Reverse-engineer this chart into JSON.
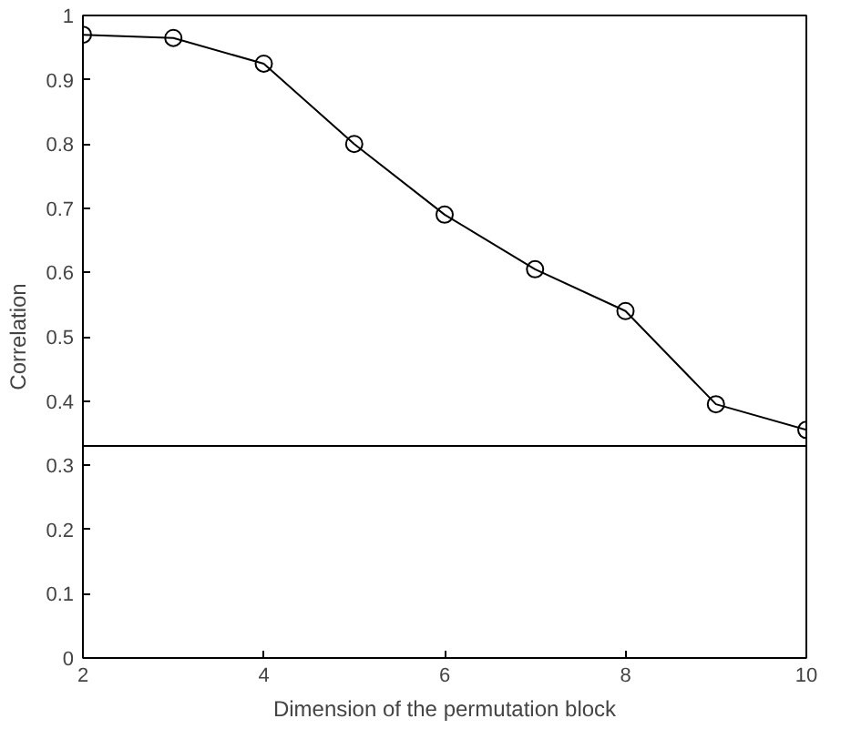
{
  "chart_data": {
    "type": "line",
    "xlabel": "Dimension of the permutation block",
    "ylabel": "Correlation",
    "x": [
      2,
      3,
      4,
      5,
      6,
      7,
      8,
      9,
      10
    ],
    "series": [
      {
        "color": "#000000",
        "values": [
          0.97,
          0.965,
          0.925,
          0.8,
          0.69,
          0.605,
          0.54,
          0.395,
          0.355
        ]
      }
    ],
    "xlim": [
      2,
      10
    ],
    "xticks": [
      2,
      4,
      6,
      8,
      10
    ],
    "ylim": [
      0,
      1
    ],
    "yticks": [
      0,
      0.1,
      0.2,
      0.3,
      0.4,
      0.5,
      0.6,
      0.7,
      0.8,
      0.9,
      1
    ],
    "ref_lines": [
      {
        "axis": "y",
        "value": 0.33,
        "label": null,
        "color": "#000000"
      }
    ],
    "marker": "circle",
    "line_style": "solid",
    "grid": false
  }
}
